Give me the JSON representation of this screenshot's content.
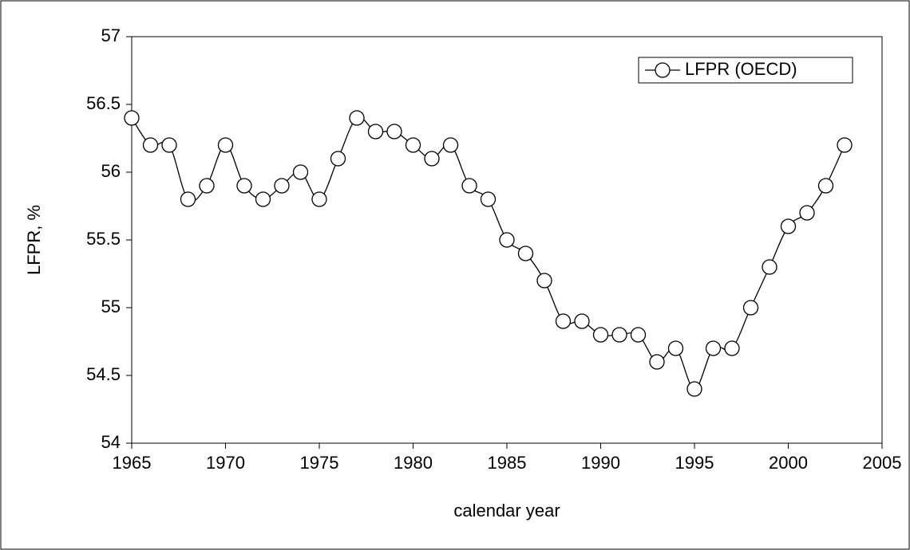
{
  "chart_data": {
    "type": "line",
    "x_label": "calendar year",
    "y_label": "LFPR, %",
    "x": [
      1965,
      1966,
      1967,
      1968,
      1969,
      1970,
      1971,
      1972,
      1973,
      1974,
      1975,
      1976,
      1977,
      1978,
      1979,
      1980,
      1981,
      1982,
      1983,
      1984,
      1985,
      1986,
      1987,
      1988,
      1989,
      1990,
      1991,
      1992,
      1993,
      1994,
      1995,
      1996,
      1997,
      1998,
      1999,
      2000,
      2001,
      2002,
      2003
    ],
    "series": [
      {
        "name": "LFPR (OECD)",
        "color": "#000000",
        "values": [
          56.4,
          56.2,
          56.2,
          55.8,
          55.9,
          56.2,
          55.9,
          55.8,
          55.9,
          56.0,
          55.8,
          56.1,
          56.4,
          56.3,
          56.3,
          56.2,
          56.1,
          56.2,
          55.9,
          55.8,
          55.5,
          55.4,
          55.2,
          54.9,
          54.9,
          54.8,
          54.8,
          54.8,
          54.6,
          54.7,
          54.4,
          54.7,
          54.7,
          55.0,
          55.3,
          55.6,
          55.7,
          55.9,
          56.2
        ]
      }
    ],
    "xlim": [
      1965,
      2005
    ],
    "xticks": [
      1965,
      1970,
      1975,
      1980,
      1985,
      1990,
      1995,
      2000,
      2005
    ],
    "ylim": [
      54,
      57
    ],
    "yticks": [
      54,
      54.5,
      55,
      55.5,
      56,
      56.5,
      57
    ],
    "grid": false,
    "legend": "upper right",
    "smooth": true
  }
}
